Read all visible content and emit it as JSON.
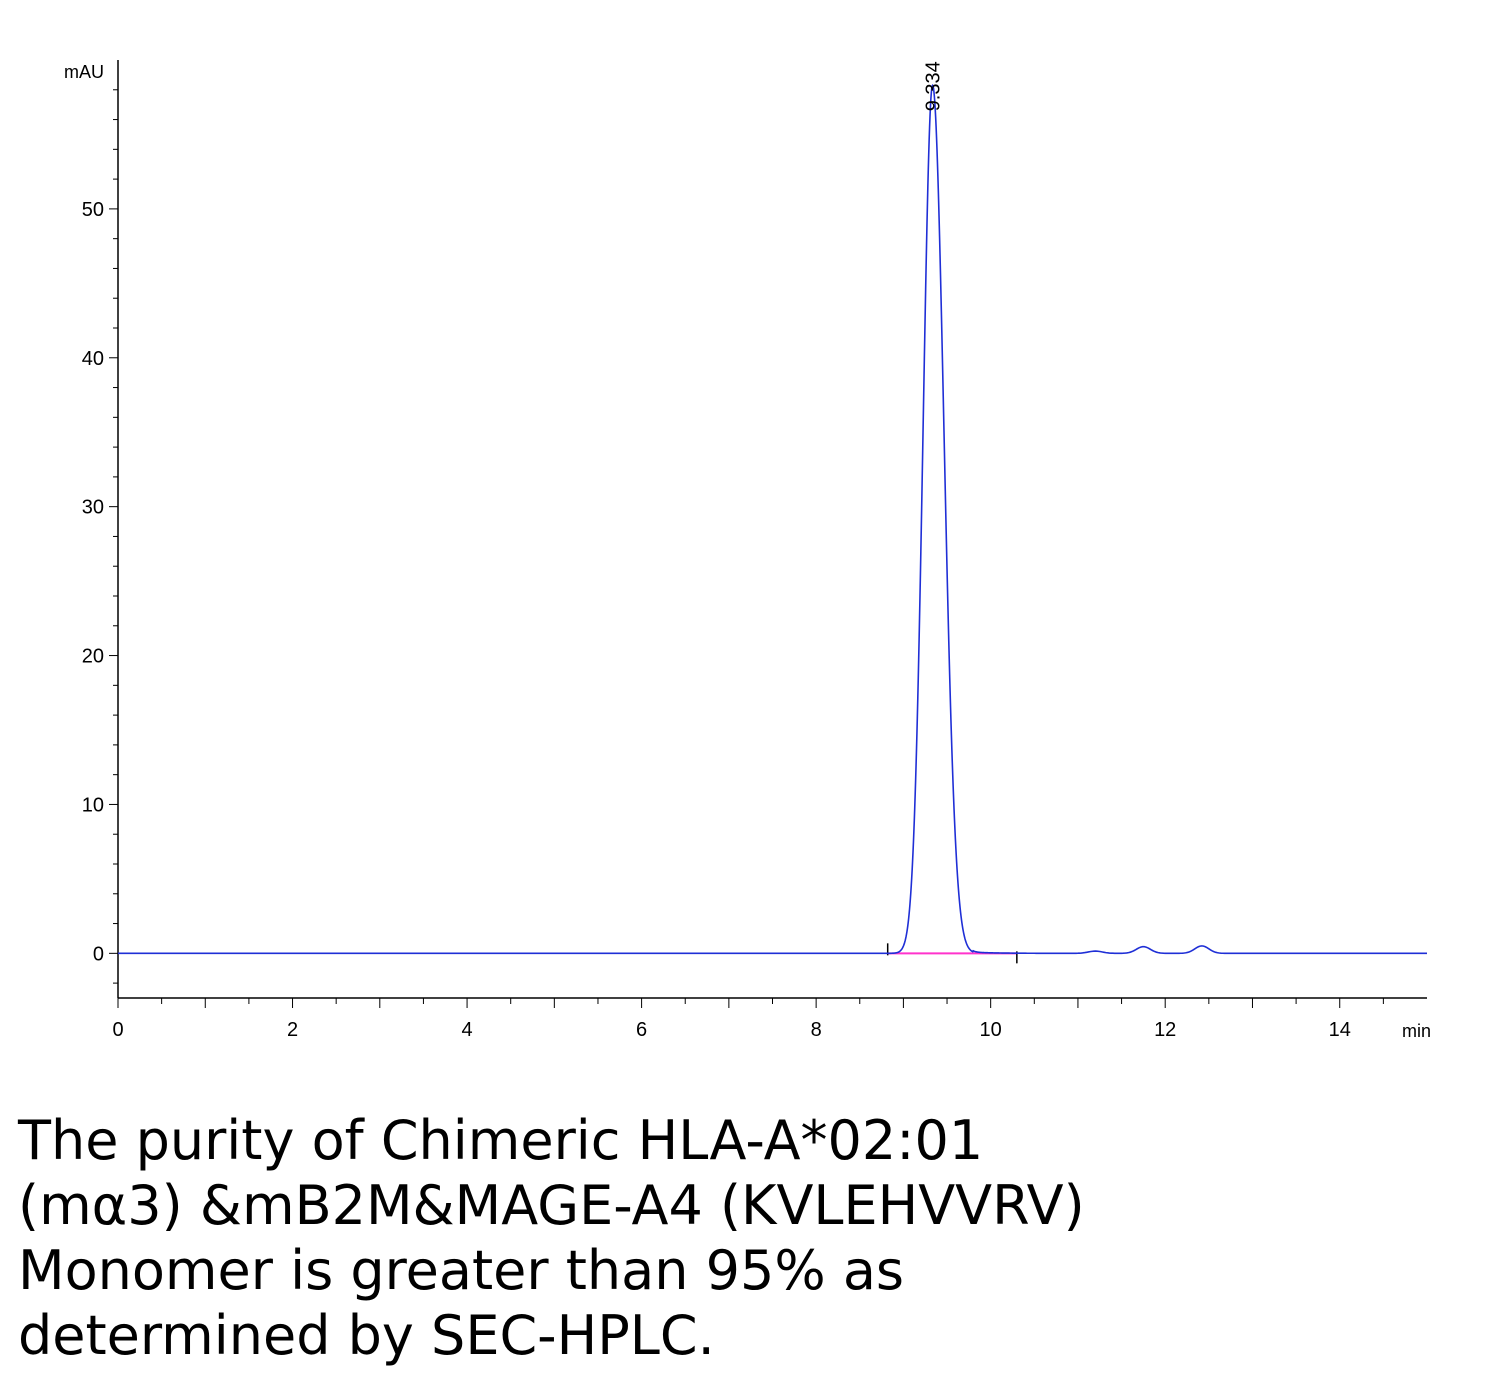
{
  "chart_data": {
    "type": "line",
    "ylabel": "mAU",
    "xlabel": "min",
    "xlim": [
      0,
      15
    ],
    "ylim": [
      -3,
      60
    ],
    "xticks": [
      0,
      2,
      4,
      6,
      8,
      10,
      12,
      14
    ],
    "yticks": [
      0,
      10,
      20,
      30,
      40,
      50
    ],
    "peak_label": "9.334",
    "peak": {
      "x": 9.334,
      "y": 58.3
    },
    "integration_baseline": {
      "x": [
        8.82,
        10.3
      ],
      "y": [
        0,
        0
      ]
    },
    "integration_marks": [
      8.82,
      10.3
    ],
    "minor_peaks": [
      {
        "x": 11.2,
        "y": 0.15
      },
      {
        "x": 11.75,
        "y": 0.45
      },
      {
        "x": 12.42,
        "y": 0.5
      }
    ],
    "series": [
      {
        "values": [
          [
            0,
            0
          ],
          [
            2,
            0
          ],
          [
            4,
            0
          ],
          [
            6,
            0
          ],
          [
            8,
            0
          ],
          [
            8.82,
            0.05
          ],
          [
            9.0,
            2.9
          ],
          [
            9.1,
            12.5
          ],
          [
            9.2,
            33.7
          ],
          [
            9.3,
            55.2
          ],
          [
            9.334,
            58.3
          ],
          [
            9.4,
            55.4
          ],
          [
            9.5,
            40.0
          ],
          [
            9.6,
            19.0
          ],
          [
            9.7,
            7.3
          ],
          [
            9.8,
            2.7
          ],
          [
            10.0,
            0.6
          ],
          [
            10.3,
            0.1
          ],
          [
            11.0,
            0.0
          ],
          [
            11.2,
            0.15
          ],
          [
            11.75,
            0.45
          ],
          [
            12.0,
            0.2
          ],
          [
            12.42,
            0.5
          ],
          [
            13.0,
            0.0
          ],
          [
            15.0,
            0.0
          ]
        ]
      }
    ]
  },
  "colors": {
    "trace": "#1f2fd6",
    "baseline": "#ff33cc",
    "axis": "#000000"
  },
  "caption": {
    "lines": [
      "The purity of Chimeric HLA-A*02:01",
      "(mα3) &mB2M&MAGE-A4 (KVLEHVVRV)",
      "Monomer is greater than 95% as",
      "determined by SEC-HPLC."
    ]
  }
}
